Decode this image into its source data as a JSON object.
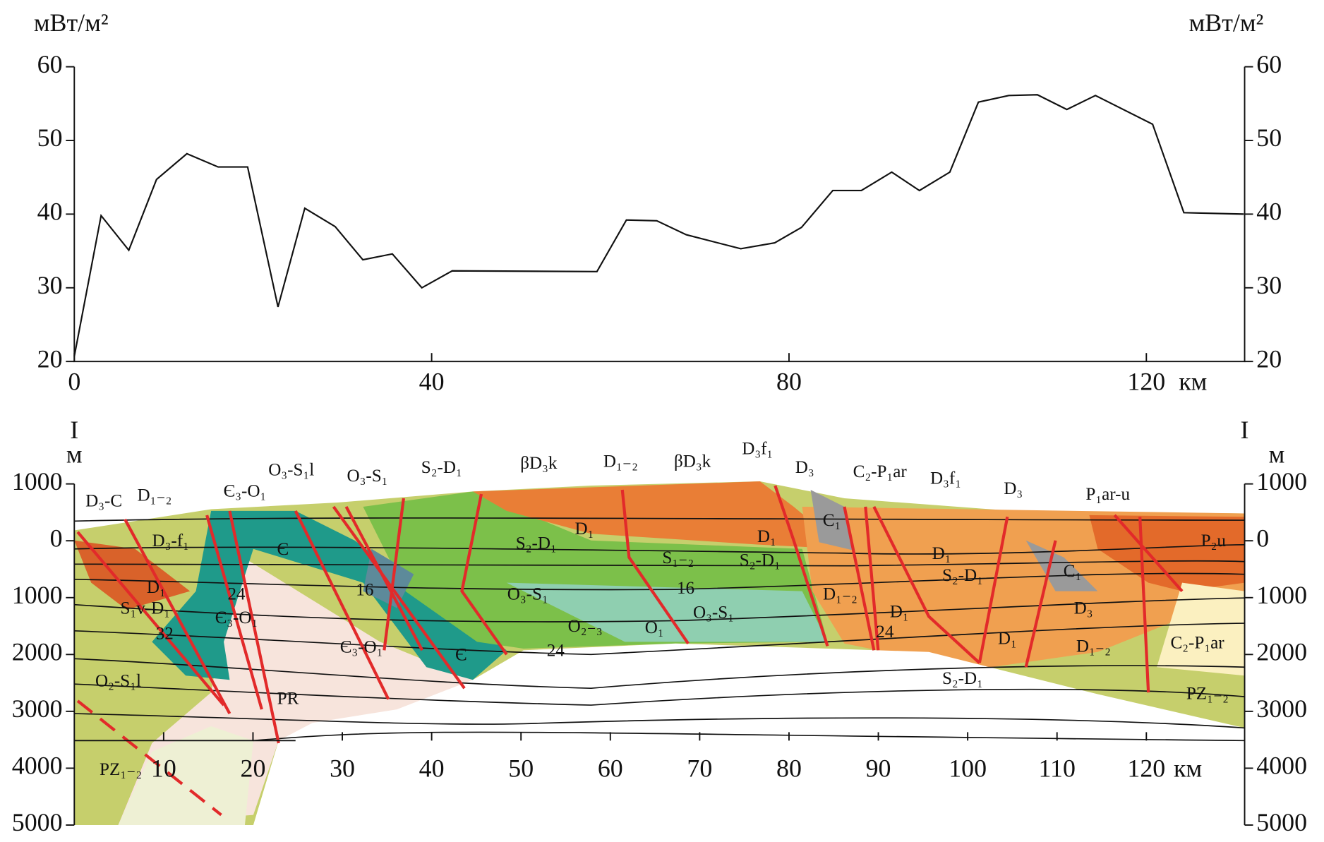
{
  "chart_data": [
    {
      "type": "line",
      "y_unit": "мВт/м²",
      "y2_unit": "мВт/м²",
      "x_unit": "км",
      "x": [
        0,
        3.0,
        6.1,
        9.2,
        12.6,
        16.1,
        19.4,
        22.8,
        25.8,
        29.2,
        32.3,
        35.6,
        38.9,
        42.3,
        58.5,
        61.8,
        65.2,
        68.5,
        74.6,
        78.4,
        81.4,
        84.9,
        88.1,
        91.5,
        94.6,
        98.0,
        101.2,
        104.6,
        107.8,
        111.1,
        114.3,
        120.7,
        124.2,
        130.9
      ],
      "values": [
        20.7,
        39.8,
        35.1,
        44.7,
        48.2,
        46.4,
        46.4,
        27.4,
        40.8,
        38.3,
        33.8,
        34.6,
        30.0,
        32.3,
        32.2,
        39.2,
        39.1,
        37.2,
        35.3,
        36.1,
        38.2,
        43.2,
        43.2,
        45.7,
        43.2,
        45.7,
        55.2,
        56.1,
        56.2,
        54.2,
        56.1,
        52.2,
        40.2,
        40.0
      ],
      "color": "#111111",
      "xlim": [
        0,
        131
      ],
      "xticks": [
        0,
        40,
        80,
        120
      ],
      "ylim": [
        20,
        60
      ],
      "yticks": [
        20,
        30,
        40,
        50,
        60
      ],
      "y2lim": [
        20,
        60
      ],
      "y2ticks": [
        20,
        30,
        40,
        50,
        60
      ]
    },
    {
      "type": "section",
      "profile_start": "I",
      "profile_end": "I",
      "y_unit": "м",
      "y2_unit": "м",
      "x_unit": "км",
      "xlim": [
        0,
        131
      ],
      "xticks": [
        10,
        20,
        30,
        40,
        50,
        60,
        70,
        80,
        90,
        100,
        110,
        120
      ],
      "ylim": [
        1000,
        -5000
      ],
      "yticks": [
        1000,
        0,
        {
          "value": -1000,
          "label": "1000"
        },
        {
          "value": -2000,
          "label": "2000"
        },
        {
          "value": -3000,
          "label": "3000"
        },
        {
          "value": -4000,
          "label": "4000"
        },
        {
          "value": -5000,
          "label": "5000"
        }
      ],
      "labels": [
        "D₃-C",
        "D₁₋₂",
        "Є₃-O₁",
        "O₃-S₁l",
        "O₃-S₁",
        "S₂-D₁",
        "βD₃k",
        "D₁₋₂",
        "βD₃k",
        "D₃f₁",
        "D₃",
        "C₂-P₁ar",
        "D₃f₁",
        "D₃",
        "P₁ar-u",
        "D₃-f₁",
        "C₁",
        "D₁",
        "S₂-D₁",
        "D₁",
        "Є",
        "S₂-D₁",
        "S₁₋₂",
        "D₁",
        "S₂-D₁",
        "C₁",
        "P₂u",
        "24",
        "16",
        "16",
        "D₁",
        "S₁v-D₁",
        "O₃-S₁",
        "D₁₋₂",
        "D₃",
        "Є₃-O₁",
        "32",
        "O₃-S₁",
        "O₂₋₃",
        "O₁",
        "D₁",
        "24",
        "Є₃-O₁",
        "Є",
        "24",
        "D₁",
        "D₁₋₂",
        "C₂-P₁ar",
        "S₂-D₁",
        "O₂-S₁l",
        "PR",
        "PZ₁₋₂",
        "PZ₁₋₂"
      ]
    }
  ]
}
